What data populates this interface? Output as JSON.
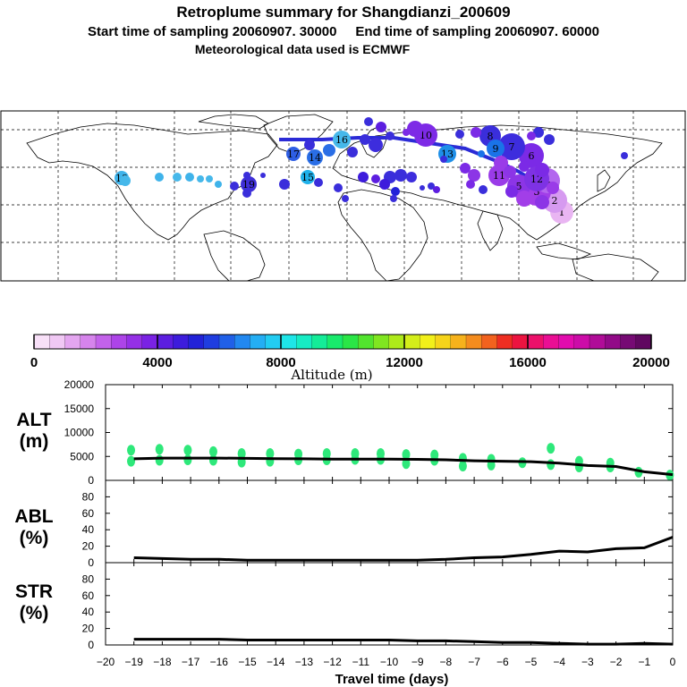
{
  "header": {
    "title": "Retroplume summary for Shangdianzi_200609",
    "line2": "Start time of sampling 20060907. 30000     End time of sampling 20060907. 60000",
    "line3": "Meteorological data used is ECMWF"
  },
  "map": {
    "track_color": "#2b2bd6",
    "clusters": [
      {
        "label": "1",
        "color": "#e9b5f2"
      },
      {
        "label": "2",
        "color": "#d69af0"
      },
      {
        "label": "3",
        "color": "#a23ee8"
      },
      {
        "label": "4",
        "color": "#b366ee"
      },
      {
        "label": "5",
        "color": "#8c35e6"
      },
      {
        "label": "6",
        "color": "#7b2ae6"
      },
      {
        "label": "7",
        "color": "#3d2ddd"
      },
      {
        "label": "8",
        "color": "#3a2edb"
      },
      {
        "label": "9",
        "color": "#1a73e8"
      },
      {
        "label": "10",
        "color": "#7d2ae6"
      },
      {
        "label": "11",
        "color": "#9a3be8"
      },
      {
        "label": "12",
        "color": "#7e32e4"
      },
      {
        "label": "13",
        "color": "#1f8fe8"
      },
      {
        "label": "14",
        "color": "#2a6ee6"
      },
      {
        "label": "15",
        "color": "#1fb1ea"
      },
      {
        "label": "16",
        "color": "#46b8ea"
      },
      {
        "label": "17",
        "color": "#2e5ee4"
      },
      {
        "label": "18",
        "color": "#3fb3ea"
      },
      {
        "label": "19",
        "color": "#3f2fd8"
      }
    ]
  },
  "colorbar": {
    "axis_label": "Altitude (m)",
    "ticks": [
      "0",
      "4000",
      "8000",
      "12000",
      "16000",
      "20000"
    ],
    "colors": [
      "#f8e0f8",
      "#f0c8f4",
      "#e4a6f0",
      "#d684ec",
      "#c362ea",
      "#ad44e8",
      "#9530e6",
      "#7a22e4",
      "#5c1ee0",
      "#3d1cdc",
      "#2222d8",
      "#1f3de0",
      "#2060e8",
      "#2288f0",
      "#24aef4",
      "#22ccf2",
      "#1ee6e8",
      "#16ecc4",
      "#14ec98",
      "#18ea6c",
      "#2ae646",
      "#52e42e",
      "#80e620",
      "#aeea1a",
      "#d4ee1a",
      "#f2f01a",
      "#f6d41a",
      "#f6b21c",
      "#f48c1e",
      "#f2621e",
      "#ee2e22",
      "#ec1440",
      "#ec106a",
      "#ea0e94",
      "#e20cae",
      "#cc0ca8",
      "#b00c98",
      "#920a88",
      "#760a74",
      "#600860"
    ],
    "range": [
      0,
      20000
    ]
  },
  "chart_data": [
    {
      "type": "scatter+line",
      "panel": "ALT",
      "ylabel": "ALT\n(m)",
      "ylabel_line1": "ALT",
      "ylabel_line2": "(m)",
      "ylim": [
        0,
        20000
      ],
      "yticks": [
        "20000",
        "15000",
        "10000",
        "5000",
        "0"
      ],
      "line_x": [
        -19,
        -18,
        -17,
        -16,
        -15,
        -14,
        -13,
        -12,
        -11,
        -10,
        -9,
        -8,
        -7,
        -6,
        -5,
        -4,
        -3,
        -2,
        -1,
        0
      ],
      "line_y": [
        4500,
        4650,
        4650,
        4650,
        4600,
        4550,
        4500,
        4450,
        4450,
        4450,
        4400,
        4300,
        4100,
        4000,
        3900,
        3600,
        3100,
        2900,
        1800,
        1200
      ],
      "points": [
        {
          "x": -19.1,
          "y": 4000
        },
        {
          "x": -19.1,
          "y": 6300
        },
        {
          "x": -18.1,
          "y": 4200
        },
        {
          "x": -18.1,
          "y": 6500
        },
        {
          "x": -17.1,
          "y": 4300
        },
        {
          "x": -17.1,
          "y": 6300
        },
        {
          "x": -16.2,
          "y": 4200
        },
        {
          "x": -16.2,
          "y": 6000
        },
        {
          "x": -15.2,
          "y": 3800
        },
        {
          "x": -15.2,
          "y": 5600
        },
        {
          "x": -14.2,
          "y": 4000
        },
        {
          "x": -14.2,
          "y": 5600
        },
        {
          "x": -13.2,
          "y": 4300
        },
        {
          "x": -13.2,
          "y": 5500
        },
        {
          "x": -12.2,
          "y": 4300
        },
        {
          "x": -12.2,
          "y": 5600
        },
        {
          "x": -11.2,
          "y": 4400
        },
        {
          "x": -11.2,
          "y": 5600
        },
        {
          "x": -10.3,
          "y": 4400
        },
        {
          "x": -10.3,
          "y": 5600
        },
        {
          "x": -9.4,
          "y": 3500
        },
        {
          "x": -9.4,
          "y": 5400
        },
        {
          "x": -8.4,
          "y": 4200
        },
        {
          "x": -8.4,
          "y": 5300
        },
        {
          "x": -7.4,
          "y": 3000
        },
        {
          "x": -7.4,
          "y": 4600
        },
        {
          "x": -6.4,
          "y": 3200
        },
        {
          "x": -6.4,
          "y": 4400
        },
        {
          "x": -5.3,
          "y": 3700
        },
        {
          "x": -4.3,
          "y": 3300
        },
        {
          "x": -4.3,
          "y": 6700
        },
        {
          "x": -3.3,
          "y": 2800
        },
        {
          "x": -3.3,
          "y": 4000
        },
        {
          "x": -2.2,
          "y": 2800
        },
        {
          "x": -2.2,
          "y": 3600
        },
        {
          "x": -1.2,
          "y": 1700
        },
        {
          "x": -0.1,
          "y": 1100
        }
      ]
    },
    {
      "type": "line",
      "panel": "ABL",
      "ylabel_line1": "ABL",
      "ylabel_line2": "(%)",
      "ylim": [
        0,
        100
      ],
      "yticks": [
        "80",
        "60",
        "40",
        "20",
        "0"
      ],
      "x": [
        -19,
        -18,
        -17,
        -16,
        -15,
        -14,
        -13,
        -12,
        -11,
        -10,
        -9,
        -8,
        -7,
        -6,
        -5,
        -4,
        -3,
        -2,
        -1,
        0
      ],
      "y": [
        6,
        5,
        4,
        4,
        3,
        3,
        3,
        3,
        3,
        3,
        3,
        4,
        6,
        7,
        10,
        14,
        13,
        17,
        18,
        31
      ]
    },
    {
      "type": "line",
      "panel": "STR",
      "ylabel_line1": "STR",
      "ylabel_line2": "(%)",
      "ylim": [
        0,
        100
      ],
      "yticks": [
        "80",
        "60",
        "40",
        "20",
        "0"
      ],
      "x": [
        -19,
        -18,
        -17,
        -16,
        -15,
        -14,
        -13,
        -12,
        -11,
        -10,
        -9,
        -8,
        -7,
        -6,
        -5,
        -4,
        -3,
        -2,
        -1,
        0
      ],
      "y": [
        7,
        7,
        7,
        7,
        6,
        6,
        6,
        6,
        6,
        6,
        5,
        5,
        4,
        3,
        3,
        2,
        1,
        1,
        2,
        1
      ]
    }
  ],
  "xaxis": {
    "label": "Travel time (days)",
    "ticks": [
      "−20",
      "−19",
      "−18",
      "−17",
      "−16",
      "−15",
      "−14",
      "−13",
      "−12",
      "−11",
      "−10",
      "−9",
      "−8",
      "−7",
      "−6",
      "−5",
      "−4",
      "−3",
      "−2",
      "−1",
      "0"
    ],
    "range": [
      -20,
      0
    ]
  }
}
